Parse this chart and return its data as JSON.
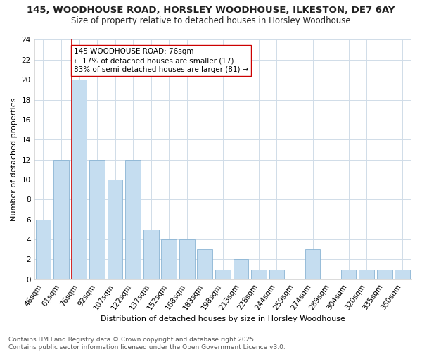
{
  "title_line1": "145, WOODHOUSE ROAD, HORSLEY WOODHOUSE, ILKESTON, DE7 6AY",
  "title_line2": "Size of property relative to detached houses in Horsley Woodhouse",
  "xlabel": "Distribution of detached houses by size in Horsley Woodhouse",
  "ylabel": "Number of detached properties",
  "categories": [
    "46sqm",
    "61sqm",
    "76sqm",
    "92sqm",
    "107sqm",
    "122sqm",
    "137sqm",
    "152sqm",
    "168sqm",
    "183sqm",
    "198sqm",
    "213sqm",
    "228sqm",
    "244sqm",
    "259sqm",
    "274sqm",
    "289sqm",
    "304sqm",
    "320sqm",
    "335sqm",
    "350sqm"
  ],
  "values": [
    6,
    12,
    20,
    12,
    10,
    12,
    5,
    4,
    4,
    3,
    1,
    2,
    1,
    1,
    0,
    3,
    0,
    1,
    1,
    1,
    1
  ],
  "bar_color": "#c5ddf0",
  "bar_edge_color": "#8ab4d4",
  "highlight_bar_index": 2,
  "highlight_line_color": "#cc0000",
  "annotation_line1": "145 WOODHOUSE ROAD: 76sqm",
  "annotation_line2": "← 17% of detached houses are smaller (17)",
  "annotation_line3": "83% of semi-detached houses are larger (81) →",
  "ylim": [
    0,
    24
  ],
  "yticks": [
    0,
    2,
    4,
    6,
    8,
    10,
    12,
    14,
    16,
    18,
    20,
    22,
    24
  ],
  "footer_text": "Contains HM Land Registry data © Crown copyright and database right 2025.\nContains public sector information licensed under the Open Government Licence v3.0.",
  "bg_color": "#ffffff",
  "grid_color": "#d0dce8",
  "title_fontsize": 9.5,
  "subtitle_fontsize": 8.5,
  "axis_label_fontsize": 8,
  "tick_fontsize": 7.5,
  "annotation_fontsize": 7.5,
  "footer_fontsize": 6.5
}
